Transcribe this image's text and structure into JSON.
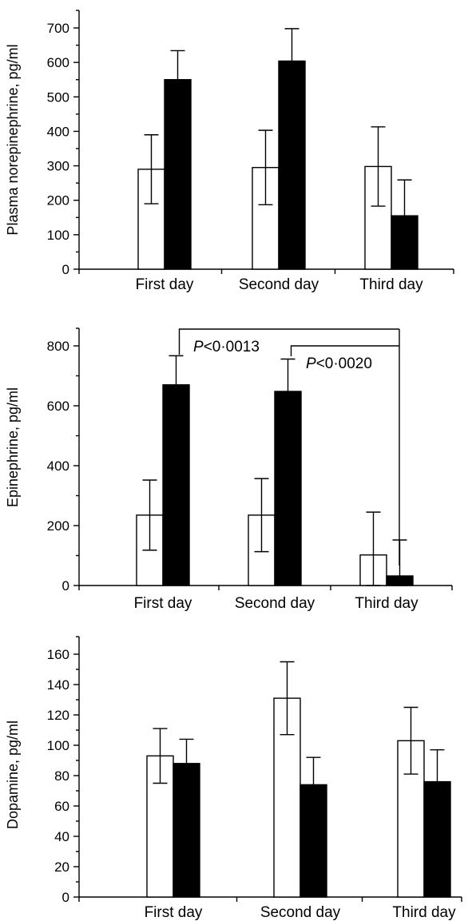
{
  "chart_data": [
    {
      "type": "bar",
      "categories": [
        "First day",
        "Second day",
        "Third day"
      ],
      "ylabel": "Plasma norepinephrine, pg/ml",
      "ylim": [
        0,
        700
      ],
      "yticks": [
        0,
        100,
        200,
        300,
        400,
        500,
        600,
        700
      ],
      "series": [
        {
          "color": "#ffffff",
          "values": [
            290,
            295,
            298
          ],
          "errors": [
            100,
            108,
            115
          ]
        },
        {
          "color": "#000000",
          "values": [
            550,
            604,
            155
          ],
          "errors": [
            84,
            94,
            104
          ]
        }
      ],
      "annotations": []
    },
    {
      "type": "bar",
      "categories": [
        "First day",
        "Second day",
        "Third day"
      ],
      "ylabel": "Epinephrine, pg/ml",
      "ylim": [
        0,
        800
      ],
      "yticks": [
        0,
        200,
        400,
        600,
        800
      ],
      "series": [
        {
          "color": "#ffffff",
          "values": [
            235,
            235,
            102
          ],
          "errors": [
            117,
            122,
            143
          ]
        },
        {
          "color": "#000000",
          "values": [
            670,
            648,
            32
          ],
          "errors": [
            97,
            108,
            120
          ]
        }
      ],
      "annotations": [
        {
          "text_italic": "P",
          "text": "<0·0013",
          "from_category": 0,
          "to_category": 2
        },
        {
          "text_italic": "P",
          "text": "<0·0020",
          "from_category": 1,
          "to_category": 2
        }
      ]
    },
    {
      "type": "bar",
      "categories": [
        "First day",
        "Second day",
        "Third day"
      ],
      "ylabel": "Dopamine, pg/ml",
      "ylim": [
        0,
        160
      ],
      "yticks": [
        0,
        20,
        40,
        60,
        80,
        100,
        120,
        140,
        160
      ],
      "series": [
        {
          "color": "#ffffff",
          "values": [
            93,
            131,
            103
          ],
          "errors": [
            18,
            24,
            22
          ]
        },
        {
          "color": "#000000",
          "values": [
            88,
            74,
            76
          ],
          "errors": [
            16,
            18,
            21
          ]
        }
      ],
      "annotations": []
    }
  ]
}
